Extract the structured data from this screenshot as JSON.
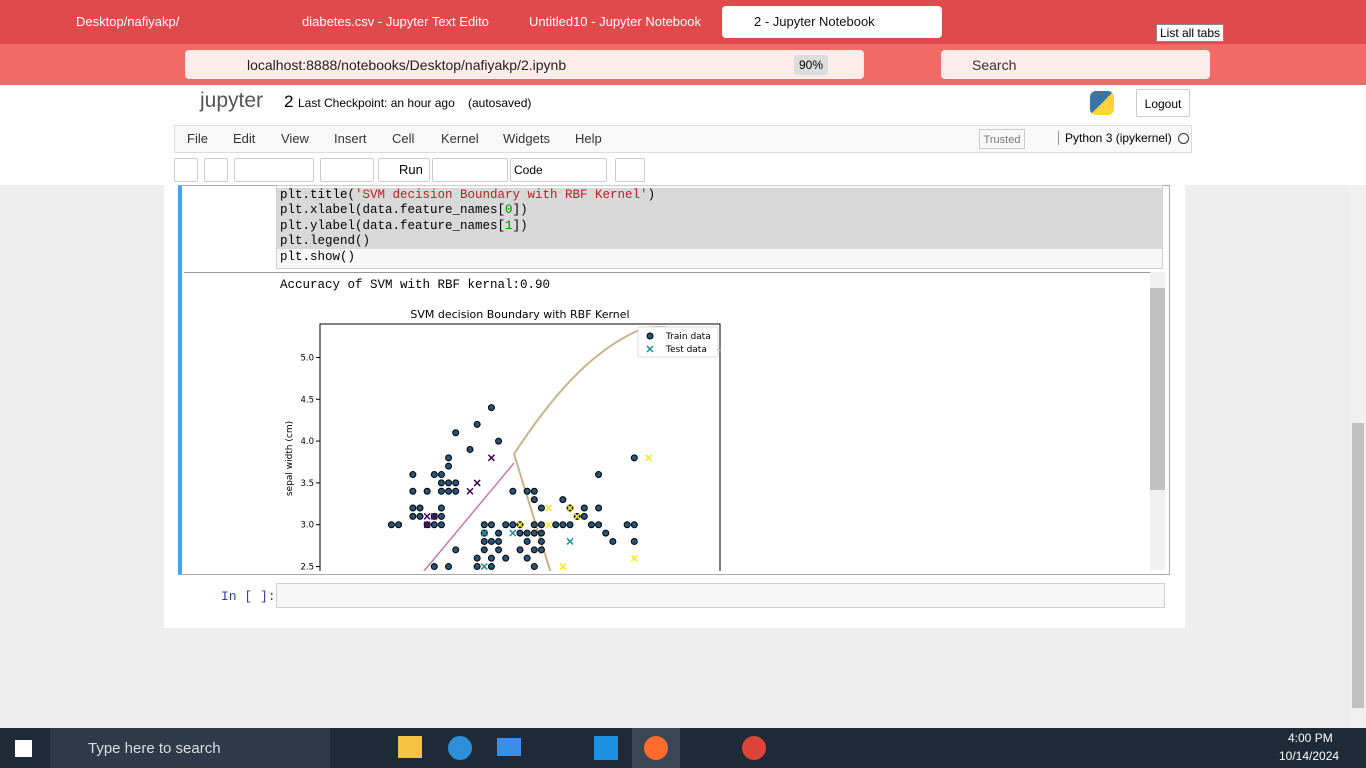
{
  "browser": {
    "tabs": [
      "Desktop/nafiyakp/",
      "diabetes.csv - Jupyter Text Edito",
      "Untitled10 - Jupyter Notebook",
      "2 - Jupyter Notebook"
    ],
    "tooltip": "List all tabs",
    "url": "localhost:8888/notebooks/Desktop/nafiyakp/2.ipynb",
    "zoom": "90%",
    "search": "Search"
  },
  "jupyter": {
    "logo": "jupyter",
    "notebook_name": "2",
    "checkpoint": "Last Checkpoint: an hour ago",
    "autosave": "(autosaved)",
    "logout": "Logout",
    "menu": [
      "File",
      "Edit",
      "View",
      "Insert",
      "Cell",
      "Kernel",
      "Widgets",
      "Help"
    ],
    "trusted": "Trusted",
    "kernel": "Python 3 (ipykernel)",
    "run": "Run",
    "cell_type": "Code"
  },
  "cell": {
    "code": [
      [
        "plt.title(",
        "'SVM decision Boundary with RBF Kernel'",
        ")"
      ],
      [
        "plt.xlabel(data.feature_names[",
        "0",
        "])"
      ],
      [
        "plt.ylabel(data.feature_names[",
        "1",
        "])"
      ],
      [
        "plt.legend()"
      ],
      [
        "plt.show()"
      ]
    ],
    "output": "Accuracy of SVM with RBF kernal:0.90"
  },
  "chart_data": {
    "type": "scatter",
    "title": "SVM decision Boundary with RBF Kernel",
    "ylabel": "sepal width (cm)",
    "xlim": [
      3.3,
      8.9
    ],
    "ylim": [
      1.0,
      5.4
    ],
    "yticks": [
      2.5,
      {
        "value": 3.0,
        "label": "3.0"
      },
      3.5,
      {
        "value": 4.0,
        "label": "4.0"
      },
      4.5,
      {
        "value": 5.0,
        "label": "5.0"
      }
    ],
    "legend": "upper right",
    "series": [
      {
        "name": "Train data",
        "color": "#26537a",
        "marker": "circle",
        "x": [
          4.3,
          4.4,
          4.8,
          4.9,
          5.0,
          5.6,
          5.7,
          5.9,
          6.0,
          6.1,
          6.3,
          6.4,
          6.6,
          6.7,
          6.8,
          7.1,
          7.2,
          7.6,
          7.7,
          4.6,
          4.7,
          4.9,
          5.0,
          6.9,
          7.0,
          4.6,
          4.7,
          5.0,
          6.4,
          6.8,
          7.0,
          7.2,
          6.7,
          6.3,
          4.6,
          4.8,
          5.0,
          5.1,
          5.2,
          6.0,
          6.2,
          6.3,
          5.0,
          5.1,
          5.2,
          4.6,
          4.9,
          5.0,
          7.2,
          5.1,
          5.1,
          7.7,
          5.4,
          5.8,
          5.2,
          5.5,
          5.7,
          5.6,
          5.8,
          6.1,
          6.2,
          6.3,
          6.4,
          7.3,
          5.6,
          5.7,
          5.8,
          6.2,
          6.4,
          7.4,
          7.7,
          5.2,
          5.6,
          5.8,
          6.1,
          6.3,
          6.4,
          5.5,
          5.7,
          5.9,
          6.2,
          4.9,
          5.1,
          5.5,
          5.7,
          6.3
        ],
        "y": [
          3.0,
          3.0,
          3.0,
          3.0,
          3.0,
          3.0,
          3.0,
          3.0,
          3.0,
          3.0,
          3.0,
          3.0,
          3.0,
          3.0,
          3.0,
          3.0,
          3.0,
          3.0,
          3.0,
          3.1,
          3.1,
          3.1,
          3.1,
          3.1,
          3.1,
          3.2,
          3.2,
          3.2,
          3.2,
          3.2,
          3.2,
          3.2,
          3.3,
          3.3,
          3.4,
          3.4,
          3.4,
          3.4,
          3.4,
          3.4,
          3.4,
          3.4,
          3.5,
          3.5,
          3.5,
          3.6,
          3.6,
          3.6,
          3.6,
          3.7,
          3.8,
          3.8,
          3.9,
          4.0,
          4.1,
          4.2,
          4.4,
          2.9,
          2.9,
          2.9,
          2.9,
          2.9,
          2.9,
          2.9,
          2.8,
          2.8,
          2.8,
          2.8,
          2.8,
          2.8,
          2.8,
          2.7,
          2.7,
          2.7,
          2.7,
          2.7,
          2.7,
          2.6,
          2.6,
          2.6,
          2.6,
          2.5,
          2.5,
          2.5,
          2.5,
          2.5
        ]
      },
      {
        "name": "Test data",
        "color": "#21918c",
        "marker": "x",
        "x": [
          4.8,
          4.8,
          5.7,
          5.5,
          5.4,
          4.9,
          5.6,
          6.0,
          6.8,
          5.6,
          6.5,
          7.9,
          7.7,
          6.7,
          6.1,
          6.5,
          6.8,
          6.9
        ],
        "y": [
          3.1,
          3.0,
          3.8,
          3.5,
          3.4,
          3.1,
          2.9,
          2.9,
          2.8,
          2.5,
          3.2,
          3.8,
          2.6,
          2.5,
          3.0,
          3.0,
          3.2,
          3.1
        ],
        "point_colors": [
          "#440154",
          "#440154",
          "#440154",
          "#440154",
          "#440154",
          "#440154",
          "#21918c",
          "#21918c",
          "#21918c",
          "#21918c",
          "#fde725",
          "#fde725",
          "#fde725",
          "#fde725",
          "#fde725",
          "#fde725",
          "#fde725",
          "#fde725"
        ]
      }
    ]
  },
  "next_cell": {
    "prompt": "In [ ]:"
  },
  "taskbar": {
    "search": "Type here to search",
    "time": "4:00 PM",
    "date": "10/14/2024"
  }
}
